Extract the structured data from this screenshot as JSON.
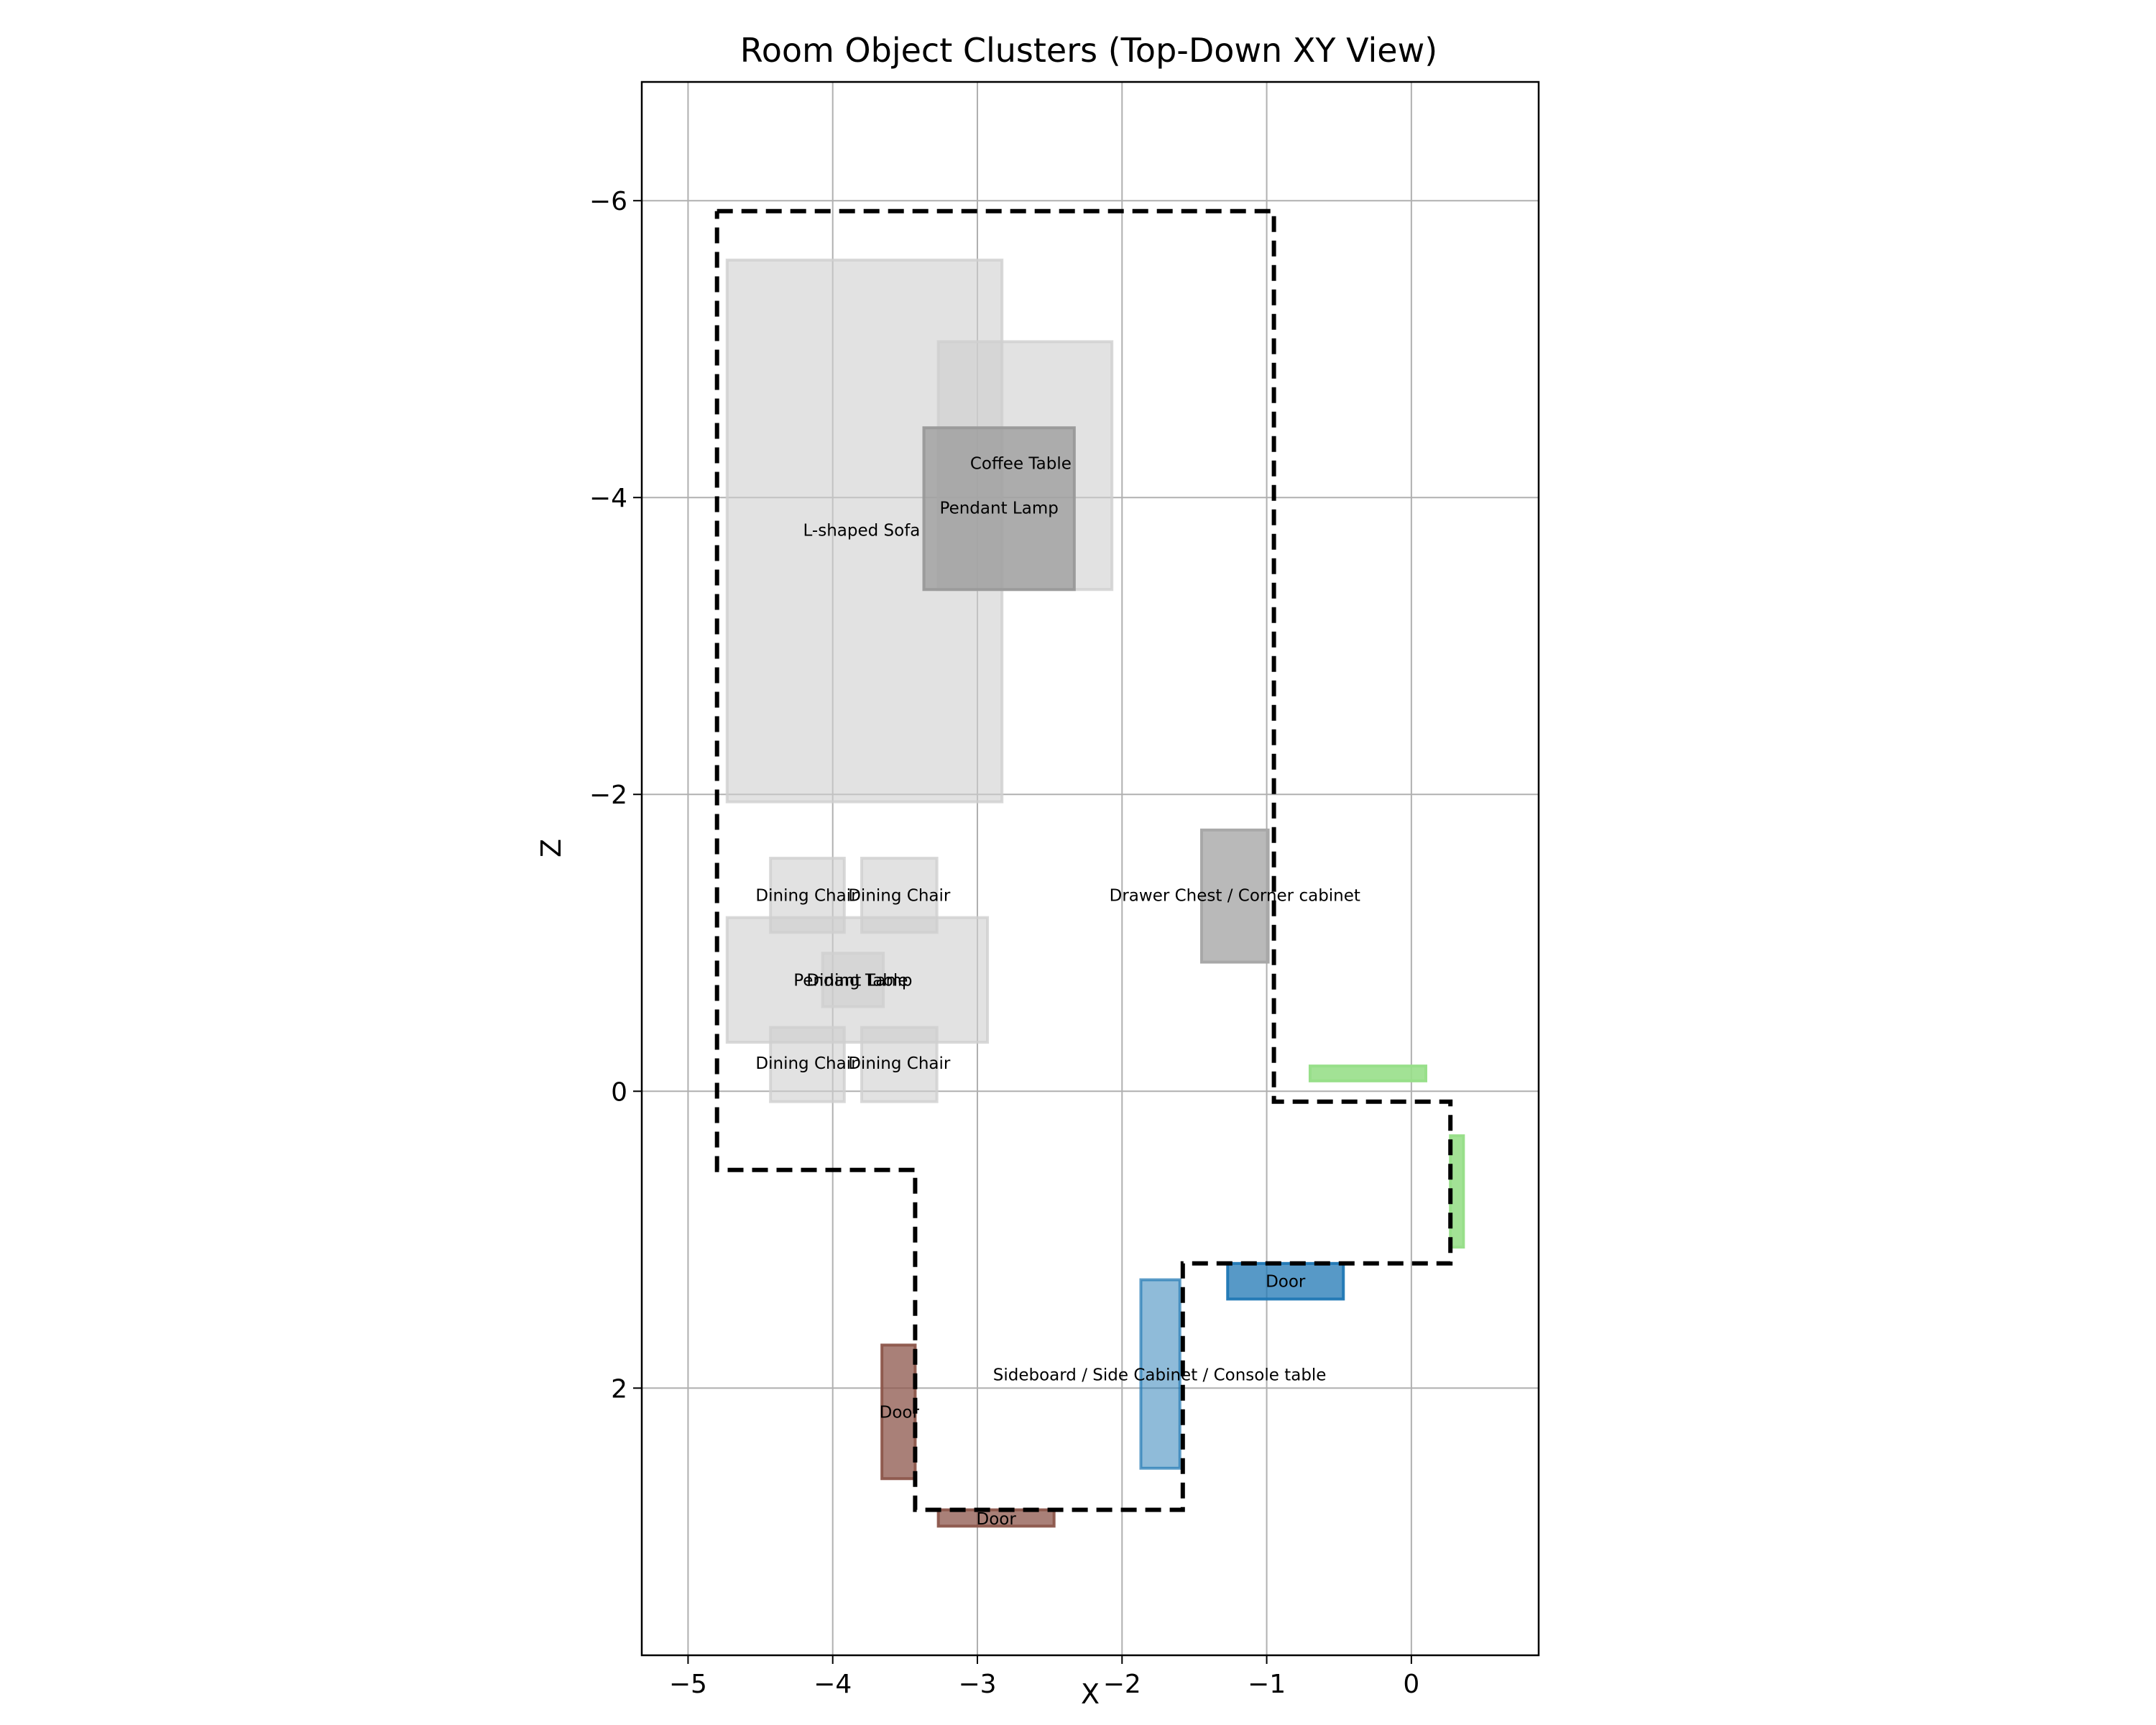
{
  "chart_data": {
    "type": "scatter",
    "title": "Room Object Clusters (Top-Down XY View)",
    "xlabel": "X",
    "ylabel": "Z",
    "xlim": [
      -5.32,
      0.88
    ],
    "ylim": [
      3.8,
      -6.8
    ],
    "y_inverted": true,
    "grid": true,
    "x_ticks": [
      -5,
      -4,
      -3,
      -2,
      -1,
      0
    ],
    "y_ticks": [
      -6,
      -4,
      -2,
      0,
      2
    ],
    "x_tick_labels": [
      "−5",
      "−4",
      "−3",
      "−2",
      "−1",
      "0"
    ],
    "y_tick_labels": [
      "−6",
      "−4",
      "−2",
      "0",
      "2"
    ],
    "room_boundary": [
      [
        -4.8,
        -5.93
      ],
      [
        -0.95,
        -5.93
      ],
      [
        -0.95,
        0.07
      ],
      [
        0.27,
        0.07
      ],
      [
        0.27,
        1.16
      ],
      [
        -1.58,
        1.16
      ],
      [
        -1.58,
        2.82
      ],
      [
        -3.43,
        2.82
      ],
      [
        -3.43,
        0.53
      ],
      [
        -4.8,
        0.53
      ],
      [
        -4.8,
        -5.93
      ]
    ],
    "objects": [
      {
        "label": "L-shaped Sofa",
        "x": [
          -4.73,
          -2.83
        ],
        "z": [
          -5.6,
          -1.95
        ],
        "color": "#cfcfcf",
        "alpha": 0.6,
        "label_pos": [
          -3.8,
          -3.78
        ]
      },
      {
        "label": "",
        "x": [
          -3.27,
          -2.07
        ],
        "z": [
          -5.05,
          -3.38
        ],
        "color": "#cfcfcf",
        "alpha": 0.6
      },
      {
        "label": "Pendant Lamp",
        "x": [
          -3.37,
          -2.33
        ],
        "z": [
          -4.47,
          -3.38
        ],
        "color": "#999999",
        "alpha": 0.75,
        "label_pos": [
          -2.85,
          -3.93
        ]
      },
      {
        "label": "Coffee Table",
        "x": [],
        "z": [],
        "label_pos": [
          -2.7,
          -4.23
        ]
      },
      {
        "label": "Dining Chair",
        "x": [
          -4.43,
          -3.92
        ],
        "z": [
          -1.57,
          -1.07
        ],
        "color": "#cfcfcf",
        "alpha": 0.6,
        "label_pos": [
          -4.18,
          -1.32
        ]
      },
      {
        "label": "Dining Chair",
        "x": [
          -3.8,
          -3.28
        ],
        "z": [
          -1.57,
          -1.07
        ],
        "color": "#cfcfcf",
        "alpha": 0.6,
        "label_pos": [
          -3.54,
          -1.32
        ]
      },
      {
        "label": "Dining Table",
        "x": [
          -4.73,
          -2.93
        ],
        "z": [
          -1.17,
          -0.33
        ],
        "color": "#cfcfcf",
        "alpha": 0.6,
        "label_pos": [
          -3.83,
          -0.75
        ]
      },
      {
        "label": "Pendant Lamp",
        "x": [
          -4.07,
          -3.65
        ],
        "z": [
          -0.93,
          -0.57
        ],
        "color": "#cfcfcf",
        "alpha": 0.6,
        "label_pos": [
          -3.86,
          -0.75
        ]
      },
      {
        "label": "Dining Chair",
        "x": [
          -4.43,
          -3.92
        ],
        "z": [
          -0.43,
          0.07
        ],
        "color": "#cfcfcf",
        "alpha": 0.6,
        "label_pos": [
          -4.18,
          -0.19
        ]
      },
      {
        "label": "Dining Chair",
        "x": [
          -3.8,
          -3.28
        ],
        "z": [
          -0.43,
          0.07
        ],
        "color": "#cfcfcf",
        "alpha": 0.6,
        "label_pos": [
          -3.54,
          -0.19
        ]
      },
      {
        "label": "Drawer Chest / Corner cabinet",
        "x": [
          -1.45,
          -0.99
        ],
        "z": [
          -1.76,
          -0.87
        ],
        "color": "#a8a8a8",
        "alpha": 0.8,
        "label_pos": [
          -1.22,
          -1.32
        ]
      },
      {
        "label": "",
        "x": [
          -0.7,
          0.1
        ],
        "z": [
          -0.17,
          -0.07
        ],
        "color": "#98df8a",
        "alpha": 0.9
      },
      {
        "label": "",
        "x": [
          0.27,
          0.36
        ],
        "z": [
          0.3,
          1.05
        ],
        "color": "#98df8a",
        "alpha": 0.9
      },
      {
        "label": "Door",
        "x": [
          -1.27,
          -0.47
        ],
        "z": [
          1.16,
          1.4
        ],
        "color": "#1f77b4",
        "alpha": 0.75,
        "label_pos": [
          -0.87,
          1.28
        ]
      },
      {
        "label": "Sideboard / Side Cabinet / Console table",
        "x": [
          -1.87,
          -1.6
        ],
        "z": [
          1.27,
          2.54
        ],
        "color": "#1f77b4",
        "alpha": 0.5,
        "label_pos": [
          -1.74,
          1.91
        ]
      },
      {
        "label": "Door",
        "x": [
          -3.66,
          -3.43
        ],
        "z": [
          1.71,
          2.61
        ],
        "color": "#8c564b",
        "alpha": 0.75,
        "label_pos": [
          -3.54,
          2.16
        ]
      },
      {
        "label": "Door",
        "x": [
          -3.27,
          -2.47
        ],
        "z": [
          2.82,
          2.93
        ],
        "color": "#8c564b",
        "alpha": 0.75,
        "label_pos": [
          -2.87,
          2.88
        ]
      }
    ]
  }
}
